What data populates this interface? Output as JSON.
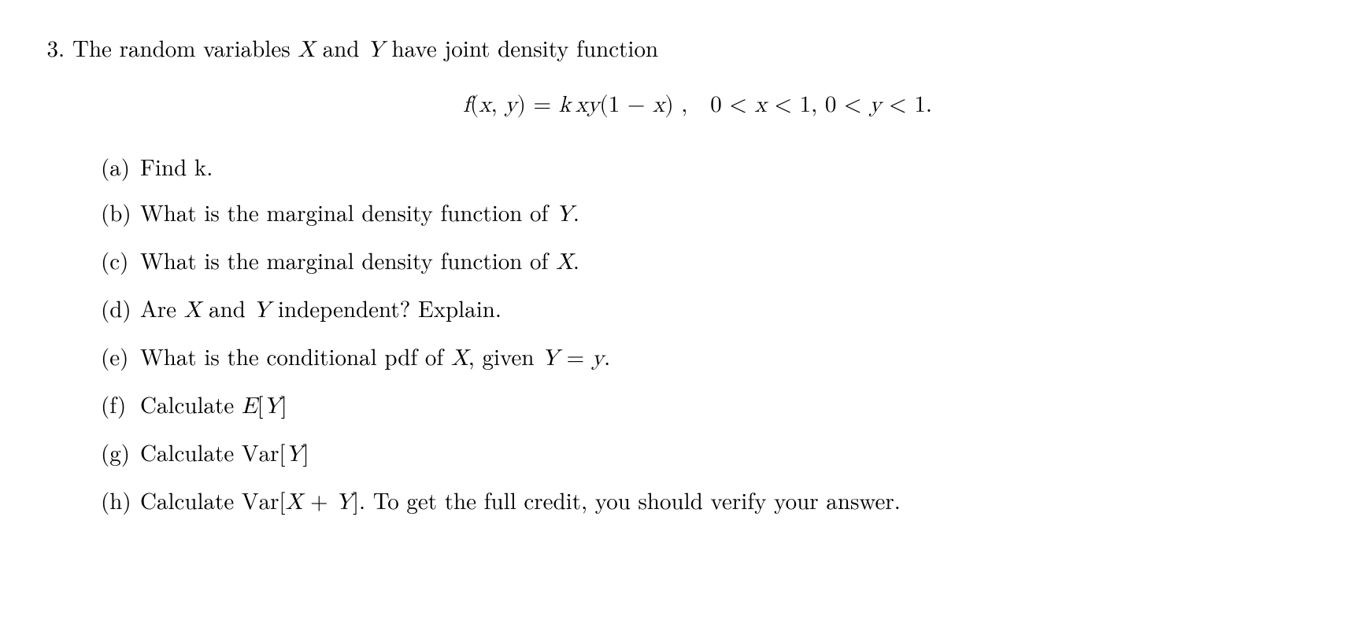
{
  "problem": {
    "number": "3.",
    "intro": "The random variables <span class=\"math\">X</span> and <span class=\"math\">Y</span> have joint density function",
    "equation": "<span class=\"math\">f<span class=\"rm\">(</span>x<span class=\"rm\">,&nbsp;</span>y<span class=\"rm\">) = </span>k<span class=\"rm\">&#8201;</span>xy<span class=\"rm\">(1 &minus; </span>x<span class=\"rm\">)&nbsp;,&nbsp;&nbsp;&nbsp;0 &lt; </span>x<span class=\"rm\"> &lt; 1, 0 &lt; </span>y<span class=\"rm\"> &lt; 1.</span></span>",
    "parts": [
      {
        "label": "(a)",
        "text": "Find k."
      },
      {
        "label": "(b)",
        "text": "What is the marginal density function of <span class=\"math\">Y</span>."
      },
      {
        "label": "(c)",
        "text": "What is the marginal density function of <span class=\"math\">X</span>."
      },
      {
        "label": "(d)",
        "text": "Are <span class=\"math\">X</span> and <span class=\"math\">Y</span> independent? Explain."
      },
      {
        "label": "(e)",
        "text": "What is the conditional pdf of <span class=\"math\">X</span>, given <span class=\"math\">Y <span class=\"rm\">=</span> y</span>."
      },
      {
        "label": "(f)",
        "text": "Calculate <span class=\"math\">E<span class=\"rm\">[</span>Y<span class=\"rm\">]</span></span>"
      },
      {
        "label": "(g)",
        "text": "Calculate <span class=\"math\"><span class=\"rm\">Var[</span>Y<span class=\"rm\">]</span></span>"
      },
      {
        "label": "(h)",
        "text": "Calculate <span class=\"math\"><span class=\"rm\">Var[</span>X <span class=\"rm\">+</span> Y<span class=\"rm\">]</span></span>. To get the full credit, you should verify your answer."
      }
    ]
  },
  "style": {
    "font_size_pt": 22,
    "text_color": "#000000",
    "background_color": "#ffffff"
  }
}
